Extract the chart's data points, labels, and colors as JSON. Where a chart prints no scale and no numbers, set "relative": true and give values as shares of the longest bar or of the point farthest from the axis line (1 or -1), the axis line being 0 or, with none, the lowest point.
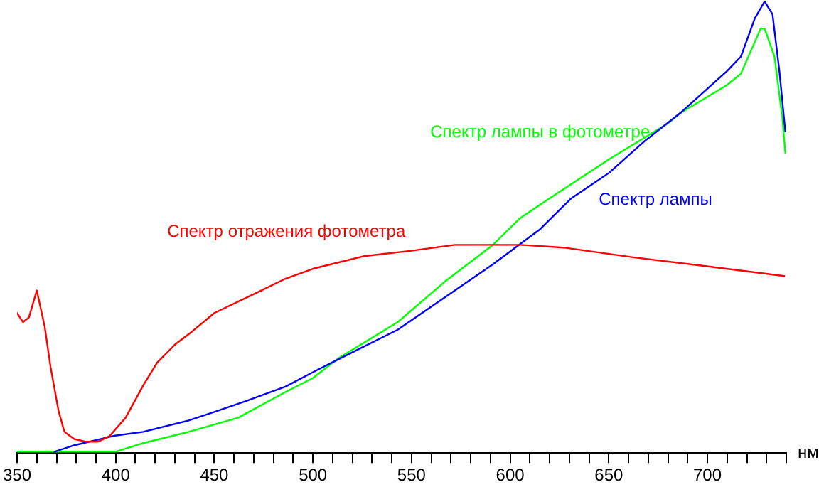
{
  "chart_data": {
    "type": "line",
    "relative": true,
    "xlabel": "нм",
    "xlim": [
      350,
      740
    ],
    "xticks": [
      350,
      {
        "value": 360,
        "label": null
      },
      {
        "value": 370,
        "label": null
      },
      {
        "value": 380,
        "label": null
      },
      {
        "value": 390,
        "label": null
      },
      400,
      {
        "value": 410,
        "label": null
      },
      {
        "value": 420,
        "label": null
      },
      {
        "value": 430,
        "label": null
      },
      {
        "value": 440,
        "label": null
      },
      450,
      {
        "value": 460,
        "label": null
      },
      {
        "value": 470,
        "label": null
      },
      {
        "value": 480,
        "label": null
      },
      {
        "value": 490,
        "label": null
      },
      500,
      {
        "value": 510,
        "label": null
      },
      {
        "value": 520,
        "label": null
      },
      {
        "value": 530,
        "label": null
      },
      {
        "value": 540,
        "label": null
      },
      550,
      {
        "value": 560,
        "label": null
      },
      {
        "value": 570,
        "label": null
      },
      {
        "value": 580,
        "label": null
      },
      {
        "value": 590,
        "label": null
      },
      600,
      {
        "value": 610,
        "label": null
      },
      {
        "value": 620,
        "label": null
      },
      {
        "value": 630,
        "label": null
      },
      {
        "value": 640,
        "label": null
      },
      650,
      {
        "value": 660,
        "label": null
      },
      {
        "value": 670,
        "label": null
      },
      {
        "value": 680,
        "label": null
      },
      {
        "value": 690,
        "label": null
      },
      700,
      {
        "value": 710,
        "label": null
      },
      {
        "value": 720,
        "label": null
      },
      {
        "value": 730,
        "label": null
      },
      {
        "value": 740,
        "label": null
      }
    ],
    "grid": false,
    "legend": false,
    "marker": "none",
    "line_style": "solid",
    "series": [
      {
        "name": "Спектр отражения фотометра",
        "color": "#ff0000",
        "x": [
          350,
          353,
          356,
          360,
          364,
          367,
          371,
          374,
          379,
          385,
          391,
          397,
          405,
          414,
          421,
          430,
          439,
          450,
          471,
          486,
          500,
          526,
          550,
          572,
          605,
          627,
          663,
          699,
          739
        ],
        "values": [
          0.31,
          0.29,
          0.3,
          0.36,
          0.28,
          0.19,
          0.094,
          0.047,
          0.031,
          0.025,
          0.025,
          0.038,
          0.078,
          0.15,
          0.2,
          0.24,
          0.27,
          0.31,
          0.354,
          0.386,
          0.408,
          0.436,
          0.448,
          0.461,
          0.461,
          0.455,
          0.433,
          0.414,
          0.392
        ]
      },
      {
        "name": "Спектр лампы",
        "color": "#0000ff",
        "x": [
          369,
          378,
          399,
          414,
          437,
          450,
          466,
          486,
          500,
          514,
          543,
          567,
          591,
          615,
          631,
          650,
          668,
          686,
          710,
          717,
          724,
          729,
          733,
          736.5,
          739.5
        ],
        "values": [
          0.003,
          0.016,
          0.038,
          0.047,
          0.072,
          0.091,
          0.115,
          0.147,
          0.179,
          0.21,
          0.273,
          0.345,
          0.417,
          0.495,
          0.564,
          0.62,
          0.69,
          0.752,
          0.846,
          0.878,
          0.962,
          1,
          0.972,
          0.846,
          0.712
        ]
      },
      {
        "name": "Спектр лампы в фотометре",
        "color": "#00ff00",
        "x": [
          350,
          400,
          414,
          437,
          462,
          486,
          500,
          513,
          543,
          567,
          591,
          605,
          620,
          650,
          680,
          686,
          710,
          717,
          727,
          729,
          734,
          738,
          739.5
        ],
        "values": [
          0.003,
          0.003,
          0.022,
          0.047,
          0.078,
          0.135,
          0.166,
          0.21,
          0.29,
          0.38,
          0.46,
          0.52,
          0.564,
          0.65,
          0.73,
          0.752,
          0.815,
          0.84,
          0.94,
          0.94,
          0.878,
          0.743,
          0.665
        ]
      }
    ]
  }
}
